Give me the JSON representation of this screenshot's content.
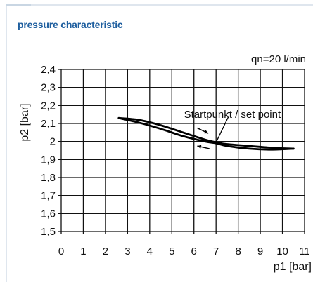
{
  "header": {
    "title": "pressure characteristic"
  },
  "chart_data": {
    "type": "line",
    "annotation_condition": "qn=20 l/min",
    "annotation_setpoint": "Startpunkt / set point",
    "xlabel": "p1 [bar]",
    "ylabel": "p2 [bar]",
    "xlim": [
      0,
      11
    ],
    "ylim": [
      1.5,
      2.4
    ],
    "xticks": [
      0,
      1,
      2,
      3,
      4,
      5,
      6,
      7,
      8,
      9,
      10,
      11
    ],
    "yticks": [
      "1,5",
      "1,6",
      "1,7",
      "1,8",
      "1,9",
      "2",
      "2,1",
      "2,2",
      "2,3",
      "2,4"
    ],
    "grid": true,
    "series": [
      {
        "x": [
          2.6,
          3.5,
          4.5,
          5.5,
          6.5,
          7.0,
          7.5,
          8.5,
          9.5,
          10.5
        ],
        "y": [
          2.13,
          2.12,
          2.09,
          2.05,
          2.01,
          1.995,
          1.985,
          1.975,
          1.965,
          1.96
        ]
      },
      {
        "x": [
          10.5,
          9.5,
          8.5,
          7.5,
          7.0,
          6.5,
          5.5,
          4.5,
          3.5,
          2.6
        ],
        "y": [
          1.96,
          1.955,
          1.96,
          1.975,
          1.99,
          2.0,
          2.03,
          2.07,
          2.105,
          2.13
        ]
      }
    ]
  }
}
